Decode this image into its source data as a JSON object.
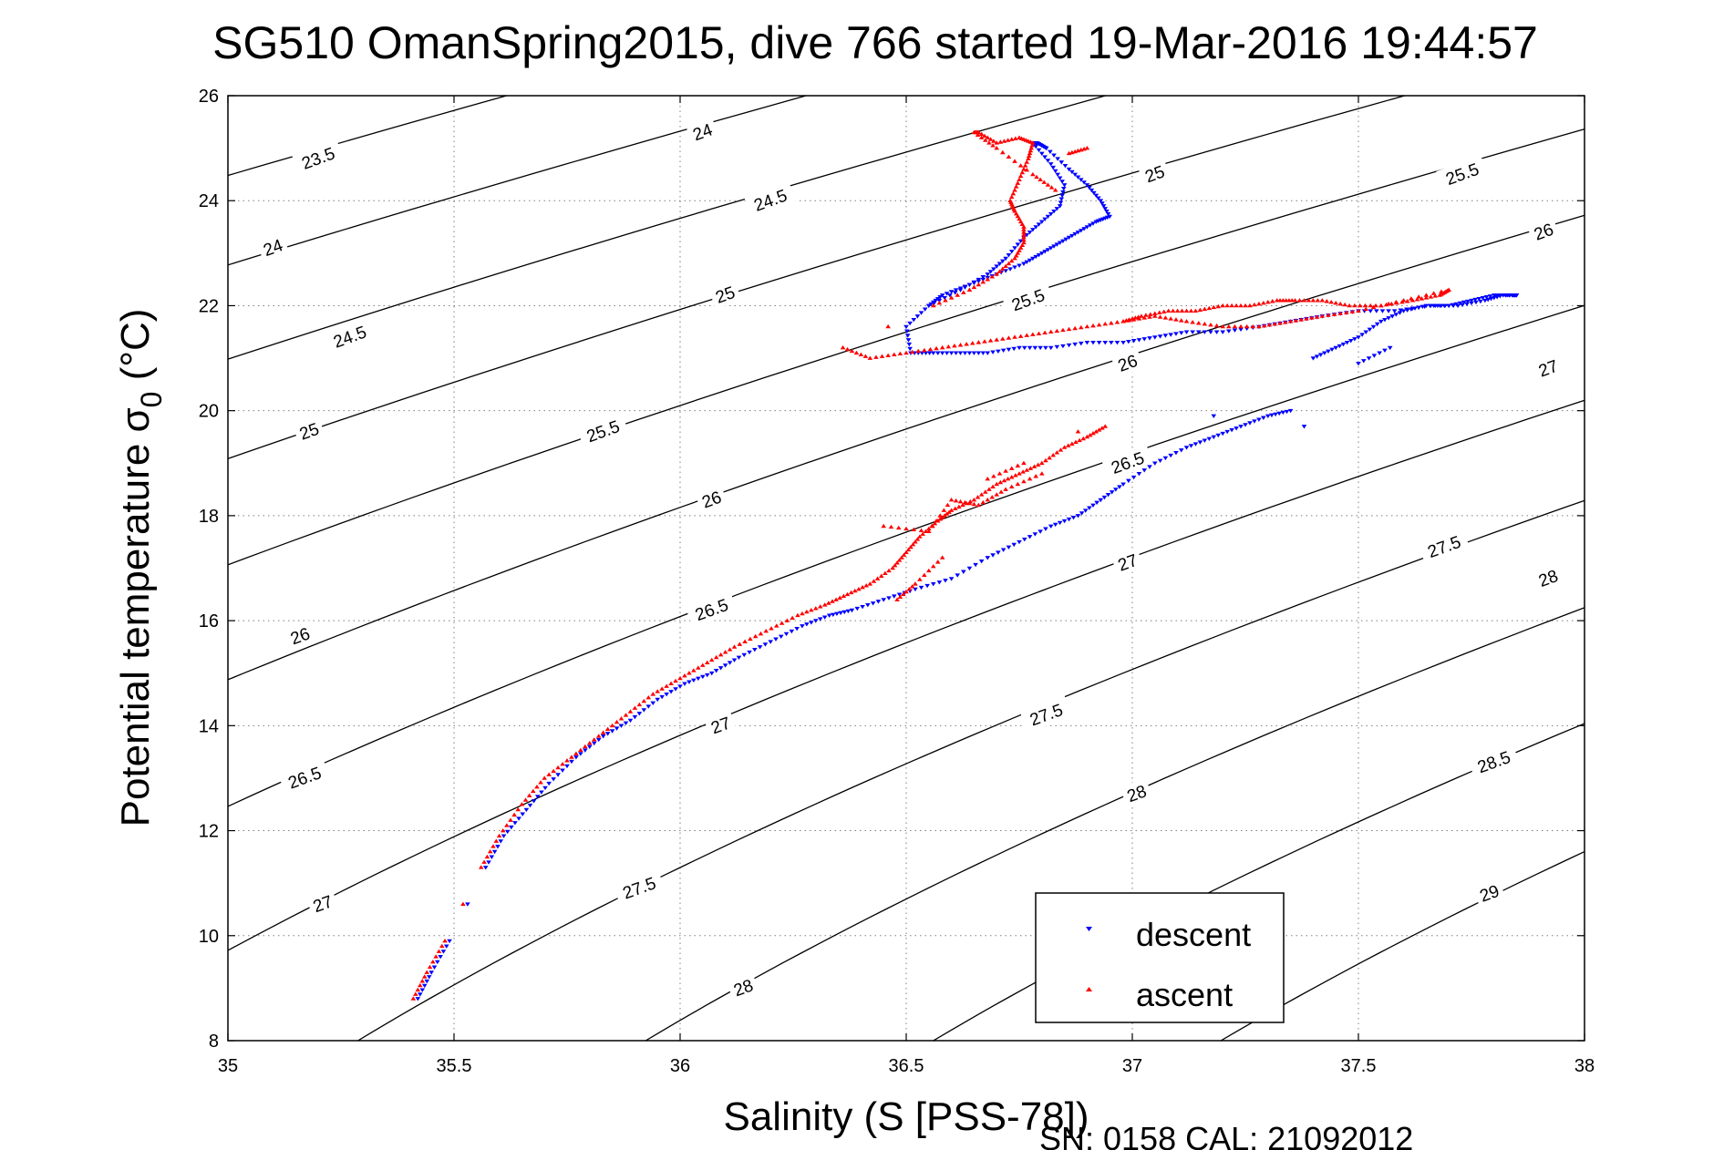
{
  "chart_data": {
    "type": "scatter",
    "title": "SG510 OmanSpring2015, dive 766 started 19-Mar-2016 19:44:57",
    "xlabel": "Salinity (S [PSS-78])",
    "ylabel": "Potential temperature σ",
    "ylabel_subscript": "0",
    "ylabel_unit": " (°C)",
    "footer": "SN: 0158  CAL: 21092012",
    "xlim": [
      35,
      38
    ],
    "ylim": [
      8,
      26
    ],
    "xticks": [
      35,
      35.5,
      36,
      36.5,
      37,
      37.5,
      38
    ],
    "xtick_labels": [
      "35",
      "35.5",
      "36",
      "36.5",
      "37",
      "37.5",
      "38"
    ],
    "yticks": [
      8,
      10,
      12,
      14,
      16,
      18,
      20,
      22,
      24,
      26
    ],
    "ytick_labels": [
      "8",
      "10",
      "12",
      "14",
      "16",
      "18",
      "20",
      "22",
      "24",
      "26"
    ],
    "grid": true,
    "legend_position": "bottom-right",
    "contours": {
      "description": "potential density sigma_0 isopycnals",
      "levels": [
        23.5,
        24,
        24.5,
        25,
        25.5,
        26,
        26.5,
        27,
        27.5,
        28,
        28.5,
        29
      ],
      "labels": [
        {
          "text": "23.5",
          "x": 35.2,
          "y": 24.8
        },
        {
          "text": "24",
          "x": 36.05,
          "y": 25.3
        },
        {
          "text": "24",
          "x": 35.1,
          "y": 23.1
        },
        {
          "text": "24.5",
          "x": 36.2,
          "y": 24.0
        },
        {
          "text": "24.5",
          "x": 35.27,
          "y": 21.4
        },
        {
          "text": "25",
          "x": 37.05,
          "y": 24.5
        },
        {
          "text": "25",
          "x": 36.1,
          "y": 22.2
        },
        {
          "text": "25",
          "x": 35.18,
          "y": 19.6
        },
        {
          "text": "25.5",
          "x": 37.73,
          "y": 24.5
        },
        {
          "text": "25.5",
          "x": 36.77,
          "y": 22.1
        },
        {
          "text": "25.5",
          "x": 35.83,
          "y": 19.6
        },
        {
          "text": "26",
          "x": 37.91,
          "y": 23.4
        },
        {
          "text": "26",
          "x": 36.99,
          "y": 20.9
        },
        {
          "text": "26",
          "x": 36.07,
          "y": 18.3
        },
        {
          "text": "26",
          "x": 35.16,
          "y": 15.7
        },
        {
          "text": "26.5",
          "x": 36.99,
          "y": 19.0
        },
        {
          "text": "26.5",
          "x": 36.07,
          "y": 16.2
        },
        {
          "text": "26.5",
          "x": 35.17,
          "y": 13.0
        },
        {
          "text": "27",
          "x": 37.92,
          "y": 20.8
        },
        {
          "text": "27",
          "x": 36.99,
          "y": 17.1
        },
        {
          "text": "27",
          "x": 36.09,
          "y": 14.0
        },
        {
          "text": "27",
          "x": 35.21,
          "y": 10.6
        },
        {
          "text": "27.5",
          "x": 37.69,
          "y": 17.4
        },
        {
          "text": "27.5",
          "x": 36.81,
          "y": 14.2
        },
        {
          "text": "27.5",
          "x": 35.91,
          "y": 10.9
        },
        {
          "text": "28",
          "x": 37.92,
          "y": 16.8
        },
        {
          "text": "28",
          "x": 37.01,
          "y": 12.7
        },
        {
          "text": "28",
          "x": 36.14,
          "y": 9.0
        },
        {
          "text": "28.5",
          "x": 37.8,
          "y": 13.3
        },
        {
          "text": "29",
          "x": 37.79,
          "y": 10.8
        }
      ]
    },
    "series": [
      {
        "name": "descent",
        "color": "#0000ff",
        "marker": "triangle-down",
        "x": [
          35.42,
          35.45,
          35.49,
          35.53,
          35.57,
          35.61,
          35.66,
          35.71,
          35.77,
          35.83,
          35.89,
          35.95,
          36.01,
          36.07,
          36.13,
          36.2,
          36.27,
          36.33,
          36.38,
          36.45,
          36.52,
          36.6,
          36.68,
          36.75,
          36.82,
          36.88,
          36.93,
          36.98,
          37.05,
          37.12,
          37.18,
          37.24,
          37.3,
          37.35,
          37.4,
          37.45,
          37.5,
          37.55,
          37.6,
          37.65,
          37.7,
          37.75,
          37.8,
          37.84,
          37.85,
          37.82,
          37.78,
          37.72,
          37.66,
          37.58,
          37.5,
          37.42,
          37.35,
          37.28,
          37.2,
          37.12,
          37.05,
          36.98,
          36.9,
          36.82,
          36.75,
          36.68,
          36.62,
          36.56,
          36.51,
          36.5,
          36.55,
          36.62,
          36.68,
          36.72,
          36.76,
          36.8,
          36.84,
          36.85,
          36.82,
          36.78,
          36.79,
          36.81,
          36.86,
          36.9,
          36.93,
          36.95,
          36.92,
          36.88,
          36.84,
          36.8,
          36.76,
          36.7,
          36.64,
          36.58,
          36.55,
          37.5,
          37.57,
          37.38,
          37.18
        ],
        "y": [
          8.8,
          9.3,
          9.9,
          10.6,
          11.3,
          11.9,
          12.4,
          12.9,
          13.4,
          13.8,
          14.1,
          14.5,
          14.8,
          15.0,
          15.3,
          15.6,
          15.9,
          16.1,
          16.2,
          16.4,
          16.6,
          16.8,
          17.2,
          17.5,
          17.8,
          18.0,
          18.3,
          18.6,
          19.0,
          19.3,
          19.5,
          19.7,
          19.9,
          20.0,
          21.0,
          21.2,
          21.4,
          21.7,
          21.9,
          22.0,
          22.0,
          22.1,
          22.2,
          22.2,
          22.2,
          22.2,
          22.1,
          22.0,
          22.0,
          21.9,
          21.9,
          21.8,
          21.7,
          21.6,
          21.5,
          21.5,
          21.4,
          21.3,
          21.3,
          21.2,
          21.2,
          21.1,
          21.1,
          21.1,
          21.1,
          21.6,
          22.0,
          22.3,
          22.6,
          22.9,
          23.3,
          23.6,
          23.9,
          24.3,
          24.7,
          25.1,
          25.1,
          25.0,
          24.6,
          24.3,
          24.0,
          23.7,
          23.6,
          23.4,
          23.2,
          23.0,
          22.8,
          22.6,
          22.4,
          22.2,
          22.0,
          20.9,
          21.2,
          19.7,
          19.9
        ]
      },
      {
        "name": "ascent",
        "color": "#ff0000",
        "marker": "triangle-up",
        "x": [
          35.41,
          35.44,
          35.48,
          35.52,
          35.56,
          35.6,
          35.65,
          35.7,
          35.76,
          35.82,
          35.88,
          35.94,
          36.0,
          36.06,
          36.12,
          36.19,
          36.26,
          36.32,
          36.37,
          36.42,
          36.47,
          36.5,
          36.53,
          36.57,
          36.6,
          36.65,
          36.7,
          36.75,
          36.8,
          36.85,
          36.9,
          36.94,
          36.98,
          37.02,
          37.08,
          37.14,
          37.2,
          37.26,
          37.32,
          37.36,
          37.42,
          37.48,
          37.55,
          37.62,
          37.68,
          37.7,
          37.6,
          37.5,
          37.42,
          37.35,
          37.28,
          37.2,
          37.12,
          37.05,
          36.98,
          36.9,
          36.82,
          36.74,
          36.66,
          36.58,
          36.5,
          36.42,
          36.36,
          36.46,
          36.56,
          36.64,
          36.7,
          36.74,
          36.76,
          36.76,
          36.74,
          36.73,
          36.75,
          36.77,
          36.78,
          36.75,
          36.7,
          36.66,
          36.65,
          36.7,
          36.78,
          36.83,
          36.86,
          36.9,
          36.8,
          36.72,
          36.66,
          36.6,
          36.55,
          36.45,
          36.88,
          36.76,
          36.68,
          36.58,
          36.52,
          36.48
        ],
        "y": [
          8.8,
          9.3,
          9.9,
          10.6,
          11.3,
          11.9,
          12.5,
          13.0,
          13.4,
          13.8,
          14.2,
          14.6,
          14.9,
          15.2,
          15.5,
          15.8,
          16.1,
          16.3,
          16.5,
          16.7,
          17.0,
          17.3,
          17.6,
          17.9,
          18.1,
          18.3,
          18.6,
          18.8,
          19.0,
          19.3,
          19.5,
          19.7,
          21.7,
          21.8,
          21.9,
          21.9,
          22.0,
          22.0,
          22.1,
          22.1,
          22.1,
          22.0,
          22.0,
          22.1,
          22.2,
          22.3,
          22.1,
          21.9,
          21.8,
          21.7,
          21.6,
          21.6,
          21.7,
          21.8,
          21.7,
          21.6,
          21.5,
          21.4,
          21.3,
          21.2,
          21.1,
          21.0,
          21.2,
          21.6,
          22.0,
          22.3,
          22.6,
          22.9,
          23.2,
          23.5,
          23.8,
          24.0,
          24.4,
          24.8,
          25.1,
          25.2,
          25.1,
          25.3,
          25.3,
          25.0,
          24.5,
          24.2,
          24.9,
          25.0,
          18.8,
          18.5,
          18.2,
          18.3,
          17.7,
          17.8,
          19.6,
          19.0,
          18.7,
          17.2,
          16.7,
          16.4
        ]
      }
    ]
  }
}
